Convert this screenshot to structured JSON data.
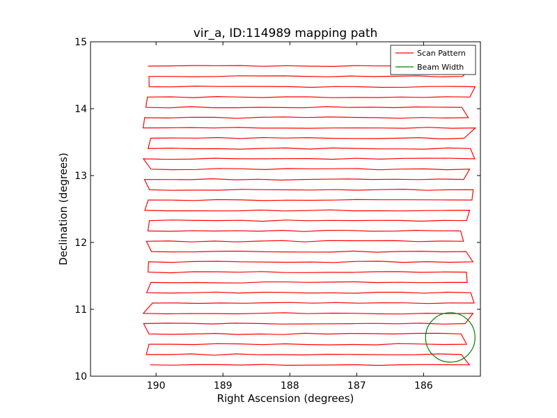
{
  "chart_data": {
    "type": "line",
    "title": "vir_a, ID:114989 mapping path",
    "xlabel": "Right Ascension (degrees)",
    "ylabel": "Declination (degrees)",
    "xlim": [
      190.98,
      185.15
    ],
    "ylim": [
      10,
      15
    ],
    "x_inverted": true,
    "xticks": [
      190,
      189,
      188,
      187,
      186
    ],
    "yticks": [
      10,
      11,
      12,
      13,
      14,
      15
    ],
    "xtick_labels": [
      "190",
      "189",
      "188",
      "187",
      "186"
    ],
    "ytick_labels": [
      "10",
      "11",
      "12",
      "13",
      "14",
      "15"
    ],
    "grid": false,
    "legend_position": "top-right",
    "legend": [
      {
        "label": "Scan Pattern",
        "color": "#ff0000",
        "style": "line"
      },
      {
        "label": "Beam Width",
        "color": "#008000",
        "style": "line"
      }
    ],
    "series": [
      {
        "name": "Scan Pattern",
        "color": "#ff0000",
        "scan_rows": {
          "dec_start": 10.17,
          "dec_step": 0.154,
          "count": 30,
          "ra_east": 185.2,
          "ra_west": 190.2
        }
      },
      {
        "name": "Beam Width",
        "color": "#008000",
        "shape": "circle",
        "center": [
          185.6,
          10.58
        ],
        "radius_dec": 0.37
      }
    ]
  }
}
